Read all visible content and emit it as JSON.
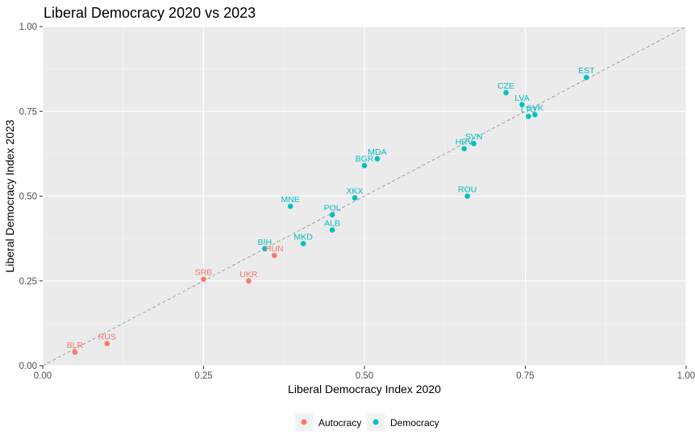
{
  "chart_data": {
    "type": "scatter",
    "title": "Liberal Democracy 2020 vs 2023",
    "xlabel": "Liberal Democracy Index 2020",
    "ylabel": "Liberal Democracy Index 2023",
    "xlim": [
      0,
      1
    ],
    "ylim": [
      0,
      1
    ],
    "x_ticks": [
      "0.00",
      "0.25",
      "0.50",
      "0.75",
      "1.00"
    ],
    "y_ticks": [
      "0.00",
      "0.25",
      "0.50",
      "0.75",
      "1.00"
    ],
    "reference_line": "y = x (dashed)",
    "grid": true,
    "legend_position": "bottom",
    "series": [
      {
        "name": "Autocracy",
        "color": "#F8766D",
        "points": [
          {
            "label": "BLR",
            "x": 0.05,
            "y": 0.04
          },
          {
            "label": "RUS",
            "x": 0.1,
            "y": 0.065
          },
          {
            "label": "SRB",
            "x": 0.25,
            "y": 0.255
          },
          {
            "label": "UKR",
            "x": 0.32,
            "y": 0.25
          },
          {
            "label": "HUN",
            "x": 0.36,
            "y": 0.325
          }
        ]
      },
      {
        "name": "Democracy",
        "color": "#00BFC4",
        "points": [
          {
            "label": "BIH",
            "x": 0.345,
            "y": 0.345
          },
          {
            "label": "MKD",
            "x": 0.405,
            "y": 0.36
          },
          {
            "label": "MNE",
            "x": 0.385,
            "y": 0.47
          },
          {
            "label": "ALB",
            "x": 0.45,
            "y": 0.4
          },
          {
            "label": "POL",
            "x": 0.45,
            "y": 0.445
          },
          {
            "label": "XKX",
            "x": 0.485,
            "y": 0.495
          },
          {
            "label": "BGR",
            "x": 0.5,
            "y": 0.59
          },
          {
            "label": "MDA",
            "x": 0.52,
            "y": 0.61
          },
          {
            "label": "ROU",
            "x": 0.66,
            "y": 0.5
          },
          {
            "label": "HRV",
            "x": 0.655,
            "y": 0.64
          },
          {
            "label": "SVN",
            "x": 0.67,
            "y": 0.655
          },
          {
            "label": "CZE",
            "x": 0.72,
            "y": 0.805
          },
          {
            "label": "LVA",
            "x": 0.745,
            "y": 0.77
          },
          {
            "label": "LTU",
            "x": 0.755,
            "y": 0.735
          },
          {
            "label": "SVK",
            "x": 0.765,
            "y": 0.74
          },
          {
            "label": "EST",
            "x": 0.845,
            "y": 0.85
          }
        ]
      }
    ]
  }
}
